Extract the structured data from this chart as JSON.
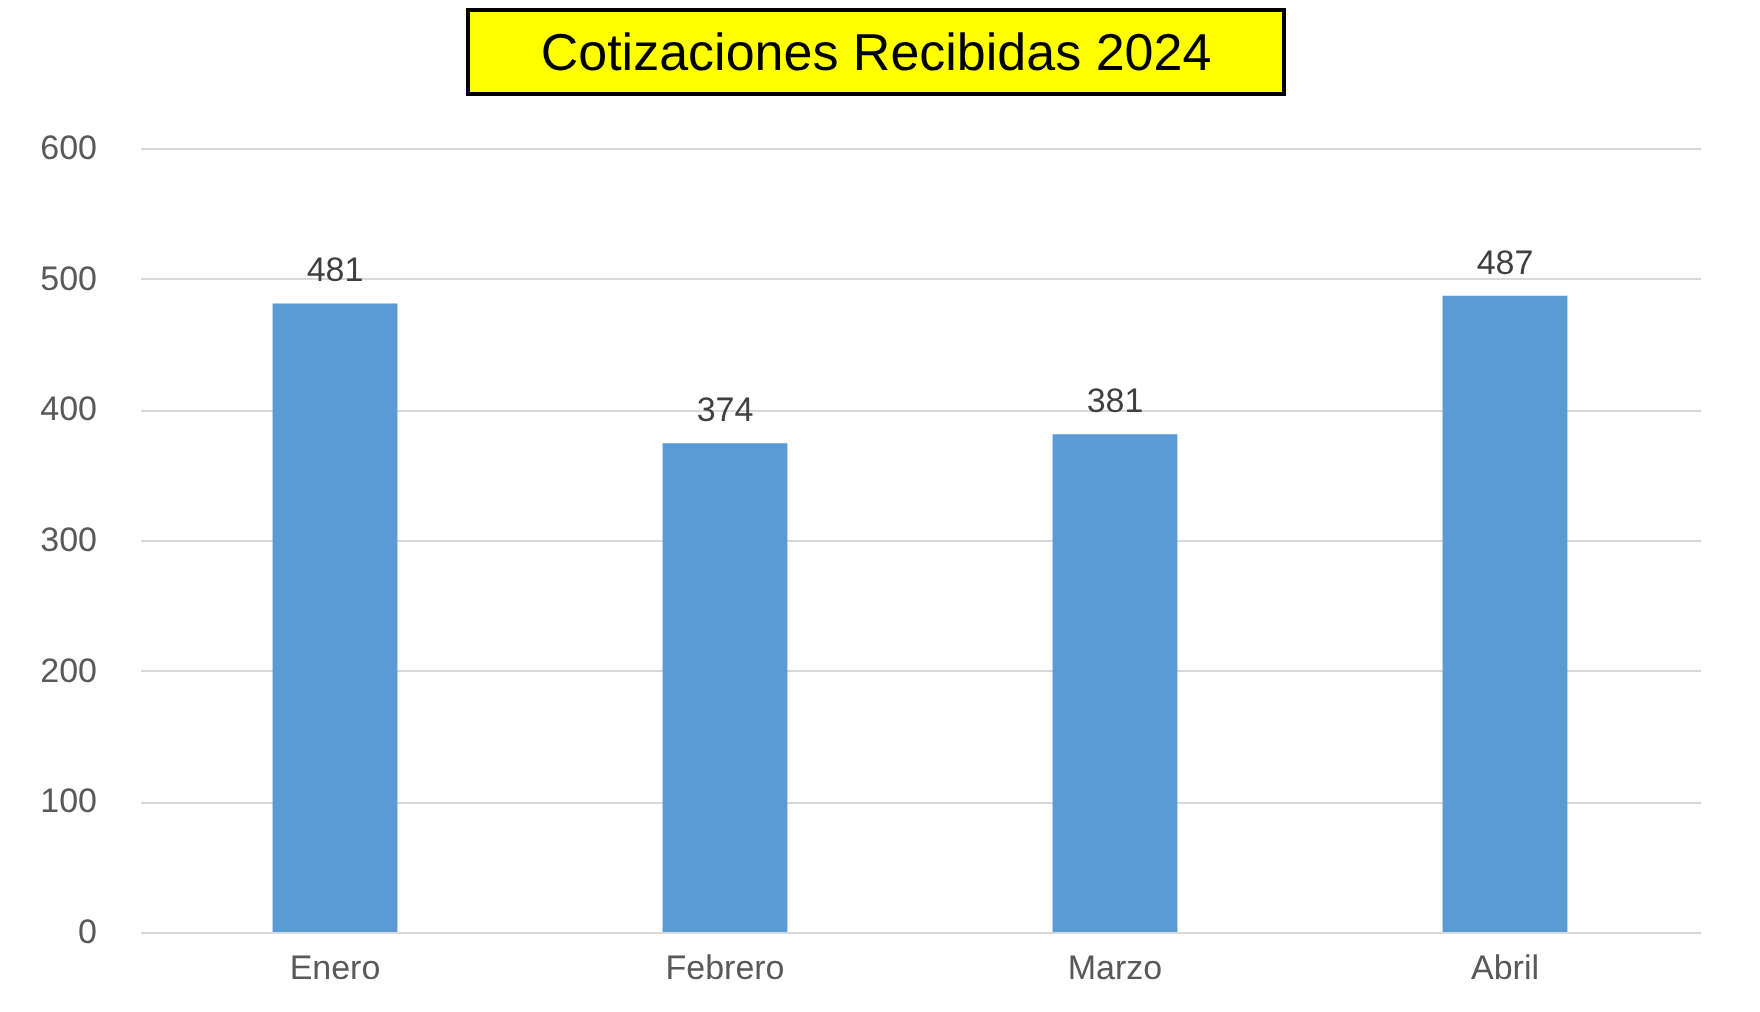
{
  "chart_data": {
    "type": "bar",
    "title": "Cotizaciones Recibidas 2024",
    "categories": [
      "Enero",
      "Febrero",
      "Marzo",
      "Abril"
    ],
    "values": [
      481,
      374,
      381,
      487
    ],
    "color": "#5b9bd5",
    "ylim": [
      0,
      600
    ],
    "yticks": [
      0,
      100,
      200,
      300,
      400,
      500,
      600
    ],
    "grid": "y",
    "data_labels": true
  }
}
